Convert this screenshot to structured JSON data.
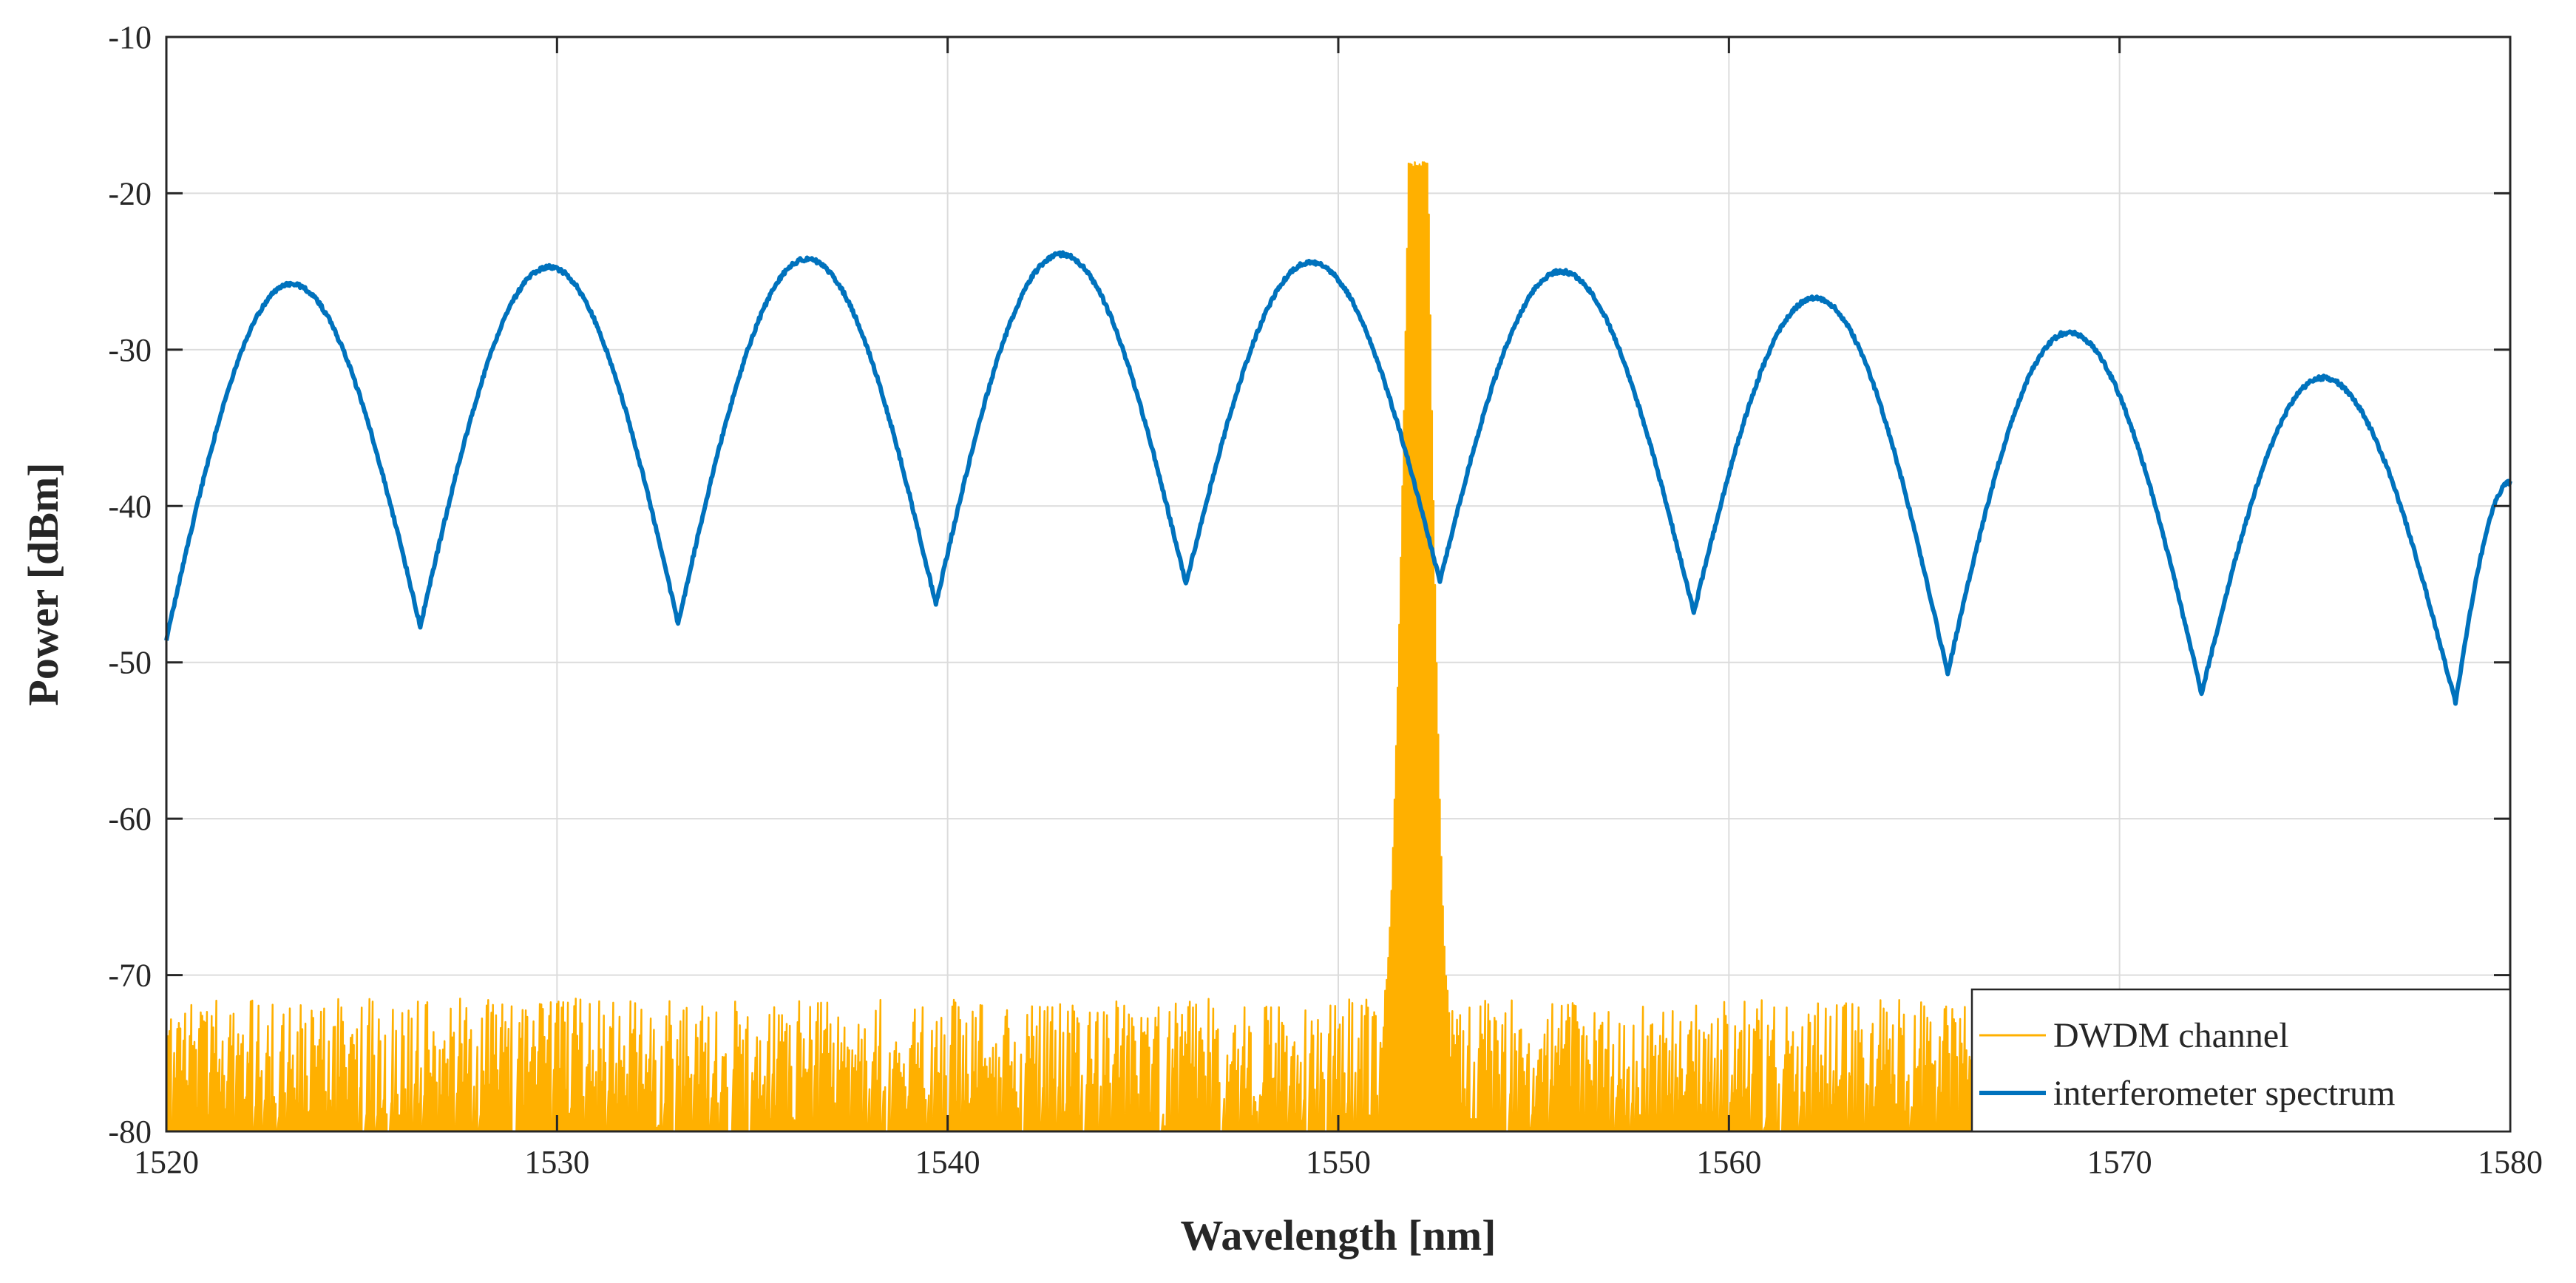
{
  "chart_data": {
    "type": "line",
    "title": "",
    "xlabel": "Wavelength [nm]",
    "ylabel": "Power [dBm]",
    "xlim": [
      1520,
      1580
    ],
    "ylim": [
      -80,
      -10
    ],
    "xticks": [
      1520,
      1530,
      1540,
      1550,
      1560,
      1570,
      1580
    ],
    "yticks": [
      -10,
      -20,
      -30,
      -40,
      -50,
      -60,
      -70,
      -80
    ],
    "grid": true,
    "legend_position": "bottom-right",
    "colors": {
      "dwdm": "#FFB000",
      "interferometer": "#0072BD",
      "grid": "#dcdcdc",
      "axis": "#262626"
    },
    "series": [
      {
        "name": "DWDM channel",
        "color": "#FFB000",
        "style": "noise-floor-with-peak",
        "noise_floor_range": [
          -80,
          -71.5
        ],
        "peak": {
          "x_start": 1551.2,
          "x_end": 1552.8,
          "top_start": 1551.8,
          "top_end": 1552.3,
          "y_top": -18,
          "y_flank": -71
        }
      },
      {
        "name": "interferometer spectrum",
        "color": "#0072BD",
        "style": "fringes",
        "x_start": 1520.0,
        "x_end": 1580.0,
        "y_start": -48.5,
        "y_end": -38.5,
        "peaks": [
          {
            "x": 1523.2,
            "y": -25.8
          },
          {
            "x": 1529.8,
            "y": -24.7
          },
          {
            "x": 1536.4,
            "y": -24.2
          },
          {
            "x": 1542.9,
            "y": -23.9
          },
          {
            "x": 1549.3,
            "y": -24.4
          },
          {
            "x": 1555.7,
            "y": -25.0
          },
          {
            "x": 1562.2,
            "y": -26.7
          },
          {
            "x": 1568.7,
            "y": -28.9
          },
          {
            "x": 1575.2,
            "y": -31.8
          }
        ],
        "minima": [
          {
            "x": 1526.5,
            "y": -47.7
          },
          {
            "x": 1533.1,
            "y": -47.5
          },
          {
            "x": 1539.7,
            "y": -46.3
          },
          {
            "x": 1546.1,
            "y": -45.0
          },
          {
            "x": 1552.6,
            "y": -44.8
          },
          {
            "x": 1559.1,
            "y": -46.8
          },
          {
            "x": 1565.6,
            "y": -50.7
          },
          {
            "x": 1572.1,
            "y": -52.0
          },
          {
            "x": 1578.6,
            "y": -52.6
          }
        ]
      }
    ]
  }
}
